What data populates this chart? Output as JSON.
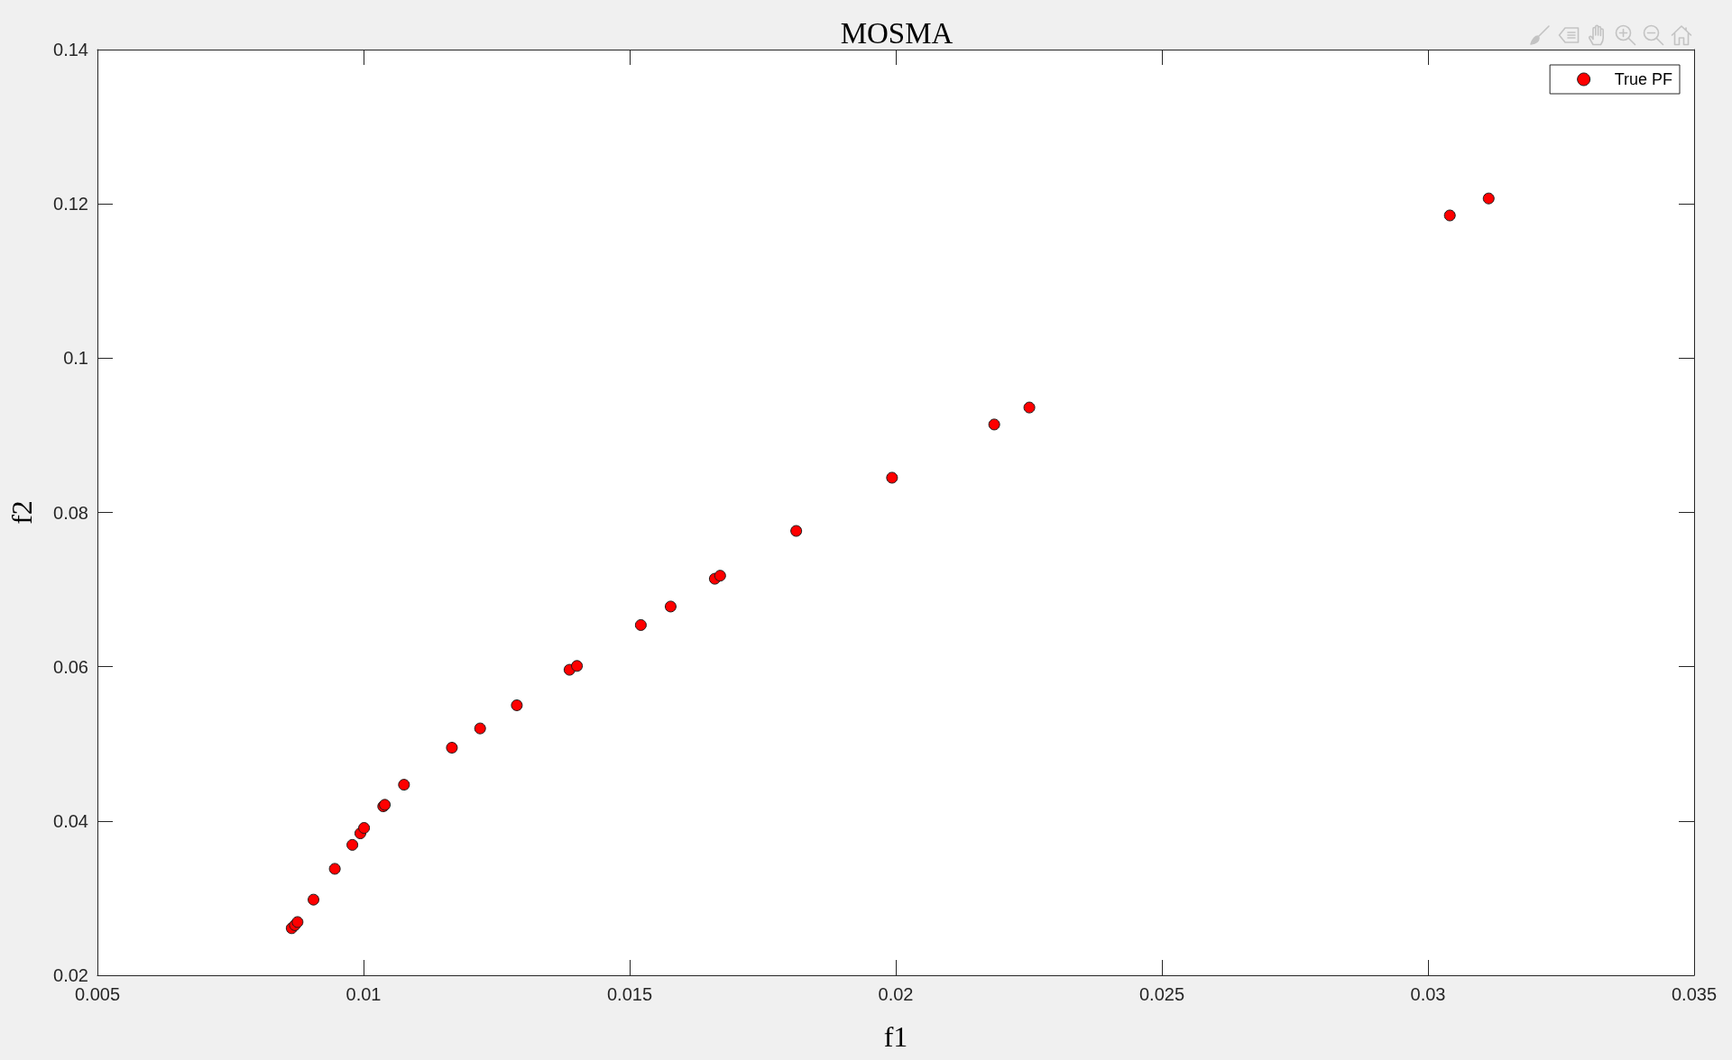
{
  "chart_data": {
    "type": "scatter",
    "title": "MOSMA",
    "xlabel": "f1",
    "ylabel": "f2",
    "x": [
      0.00865,
      0.00871,
      0.00876,
      0.00906,
      0.00946,
      0.00979,
      0.00994,
      0.01001,
      0.01037,
      0.0104,
      0.01076,
      0.01166,
      0.01219,
      0.01288,
      0.01387,
      0.01401,
      0.01521,
      0.01577,
      0.0166,
      0.0167,
      0.01813,
      0.01993,
      0.02185,
      0.02251,
      0.03041,
      0.03114
    ],
    "series": [
      {
        "name": "True PF",
        "color": "#ff0000",
        "values": [
          0.0261,
          0.0265,
          0.0269,
          0.0298,
          0.0338,
          0.0369,
          0.0384,
          0.0391,
          0.0419,
          0.0421,
          0.0447,
          0.0495,
          0.052,
          0.055,
          0.0596,
          0.0601,
          0.0654,
          0.0678,
          0.0714,
          0.0718,
          0.0776,
          0.0845,
          0.0914,
          0.0936,
          0.1185,
          0.1207
        ]
      }
    ],
    "xlim": [
      0.005,
      0.035
    ],
    "ylim": [
      0.02,
      0.14
    ],
    "xticks": [
      0.005,
      0.01,
      0.015,
      0.02,
      0.025,
      0.03,
      0.035
    ],
    "yticks": [
      0.02,
      0.04,
      0.06,
      0.08,
      0.1,
      0.12,
      0.14
    ],
    "legend": "top right",
    "marker": "circle"
  }
}
